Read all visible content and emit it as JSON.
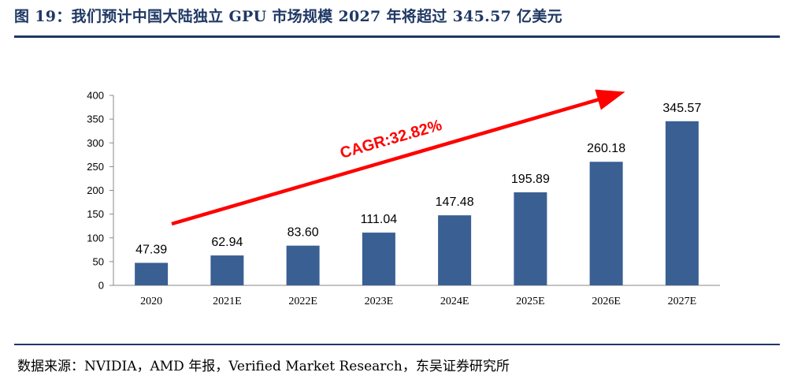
{
  "figure": {
    "title": "图 19：我们预计中国大陆独立 GPU 市场规模 2027 年将超过 345.57 亿美元",
    "source": "数据来源：NVIDIA，AMD 年报，Verified Market Research，东吴证券研究所"
  },
  "chart_data": {
    "type": "bar",
    "title": "",
    "xlabel": "",
    "ylabel": "",
    "categories": [
      "2020",
      "2021E",
      "2022E",
      "2023E",
      "2024E",
      "2025E",
      "2026E",
      "2027E"
    ],
    "values": [
      47.39,
      62.94,
      83.6,
      111.04,
      147.48,
      195.89,
      260.18,
      345.57
    ],
    "value_labels": [
      "47.39",
      "62.94",
      "83.60",
      "111.04",
      "147.48",
      "195.89",
      "260.18",
      "345.57"
    ],
    "ylim": [
      0,
      400
    ],
    "yticks": [
      0,
      50,
      100,
      150,
      200,
      250,
      300,
      350,
      400
    ],
    "grid": false,
    "bar_color": "#3a5f93",
    "annotation": {
      "text": "CAGR:32.82%",
      "color": "#ff0000"
    }
  }
}
